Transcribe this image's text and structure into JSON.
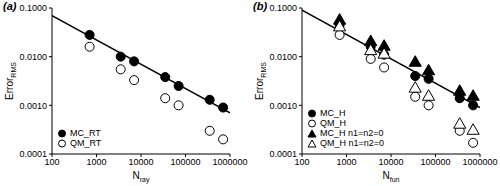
{
  "chart_data": [
    {
      "type": "scatter",
      "title": "(a)",
      "x_label": [
        "N",
        "ray"
      ],
      "y_label": [
        "Error",
        "RMS"
      ],
      "log": true,
      "grid": false,
      "legend": "lower left",
      "xlim": [
        100,
        1000000
      ],
      "xticks": [
        100,
        1000,
        10000,
        100000,
        1000000
      ],
      "ylim": [
        0.0001,
        0.1
      ],
      "yticks": [
        0.0001,
        {
          "value": 0.001,
          "label": "0.0010"
        },
        {
          "value": 0.01,
          "label": "0.0100"
        },
        {
          "value": 0.1,
          "label": "0.1000"
        }
      ],
      "x": [
        700,
        3500,
        7000,
        35000,
        70000,
        350000,
        700000
      ],
      "series": [
        {
          "name": "MC_RT",
          "color": "#000000",
          "marker": "filled_circle",
          "values": [
            0.028,
            0.01,
            0.008,
            0.0038,
            0.0025,
            0.0013,
            0.0009
          ]
        },
        {
          "name": "QM_RT",
          "color": "#000000",
          "marker": "open_circle",
          "values": [
            0.016,
            0.0055,
            0.0033,
            0.0014,
            0.001,
            0.0003,
            0.0002
          ]
        }
      ],
      "reference_line": {
        "x": [
          100,
          1000000
        ],
        "values": [
          0.07,
          0.0007
        ],
        "color": "#000000"
      }
    },
    {
      "type": "scatter",
      "title": "(b)",
      "x_label": [
        "N",
        "fun"
      ],
      "y_label": [
        "Error",
        "RMS"
      ],
      "log": true,
      "grid": false,
      "legend": "lower left",
      "xlim": [
        100,
        1000000
      ],
      "xticks": [
        100,
        1000,
        10000,
        100000,
        1000000
      ],
      "ylim": [
        0.0001,
        0.1
      ],
      "yticks": [
        0.0001,
        {
          "value": 0.001,
          "label": "0.0010"
        },
        {
          "value": 0.01,
          "label": "0.0100"
        },
        {
          "value": 0.1,
          "label": "0.1000"
        }
      ],
      "x": [
        700,
        3500,
        7000,
        35000,
        70000,
        350000,
        700000
      ],
      "series": [
        {
          "name": "MC_H",
          "color": "#000000",
          "marker": "filled_circle",
          "values": [
            0.045,
            0.016,
            0.011,
            0.004,
            0.0035,
            0.0014,
            0.001
          ]
        },
        {
          "name": "QM_H",
          "color": "#000000",
          "marker": "open_circle",
          "values": [
            0.028,
            0.009,
            0.006,
            0.0015,
            0.001,
            0.0003,
            0.00017
          ]
        },
        {
          "name": "MC_H n1=n2=0",
          "color": "#000000",
          "marker": "filled_triangle",
          "values": [
            0.055,
            0.02,
            0.016,
            0.0075,
            0.005,
            0.0019,
            0.0015
          ]
        },
        {
          "name": "QM_H n1=n2=0",
          "color": "#000000",
          "marker": "open_triangle",
          "values": [
            0.04,
            0.013,
            0.011,
            0.0022,
            0.0015,
            0.0004,
            0.0003
          ]
        }
      ],
      "reference_line": {
        "x": [
          100,
          1000000
        ],
        "values": [
          0.09,
          0.0009
        ],
        "color": "#000000"
      }
    }
  ]
}
